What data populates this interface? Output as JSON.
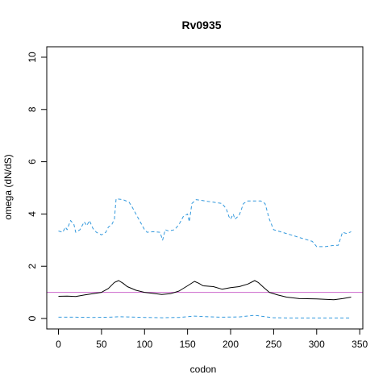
{
  "chart_data": {
    "type": "line",
    "title": "Rv0935",
    "xlabel": "codon",
    "ylabel": "omega (dN/dS)",
    "xlim": [
      -13.6,
      353.6
    ],
    "ylim": [
      -0.4,
      10.4
    ],
    "xticks": [
      0,
      50,
      100,
      150,
      200,
      250,
      300,
      350
    ],
    "yticks": [
      0,
      2,
      4,
      6,
      8,
      10
    ],
    "grid": false,
    "reference_line": {
      "y": 1,
      "color": "#cc66cc"
    },
    "series": [
      {
        "style": "solid",
        "color": "#000000",
        "points": [
          [
            0,
            0.85
          ],
          [
            10,
            0.86
          ],
          [
            20,
            0.84
          ],
          [
            30,
            0.9
          ],
          [
            40,
            0.95
          ],
          [
            50,
            1.0
          ],
          [
            58,
            1.15
          ],
          [
            65,
            1.38
          ],
          [
            70,
            1.45
          ],
          [
            75,
            1.35
          ],
          [
            80,
            1.22
          ],
          [
            90,
            1.08
          ],
          [
            100,
            1.0
          ],
          [
            110,
            0.96
          ],
          [
            120,
            0.92
          ],
          [
            130,
            0.95
          ],
          [
            140,
            1.05
          ],
          [
            150,
            1.25
          ],
          [
            158,
            1.42
          ],
          [
            163,
            1.35
          ],
          [
            168,
            1.25
          ],
          [
            180,
            1.22
          ],
          [
            190,
            1.12
          ],
          [
            200,
            1.18
          ],
          [
            210,
            1.22
          ],
          [
            220,
            1.32
          ],
          [
            228,
            1.45
          ],
          [
            232,
            1.38
          ],
          [
            238,
            1.2
          ],
          [
            245,
            1.0
          ],
          [
            255,
            0.9
          ],
          [
            265,
            0.82
          ],
          [
            280,
            0.76
          ],
          [
            300,
            0.75
          ],
          [
            320,
            0.72
          ],
          [
            330,
            0.76
          ],
          [
            340,
            0.82
          ]
        ]
      },
      {
        "style": "dashed",
        "color": "#3399dd",
        "points": [
          [
            0,
            3.35
          ],
          [
            5,
            3.3
          ],
          [
            8,
            3.5
          ],
          [
            10,
            3.4
          ],
          [
            14,
            3.75
          ],
          [
            18,
            3.6
          ],
          [
            20,
            3.3
          ],
          [
            25,
            3.4
          ],
          [
            30,
            3.7
          ],
          [
            33,
            3.55
          ],
          [
            36,
            3.75
          ],
          [
            40,
            3.45
          ],
          [
            44,
            3.3
          ],
          [
            50,
            3.2
          ],
          [
            55,
            3.3
          ],
          [
            58,
            3.5
          ],
          [
            62,
            3.6
          ],
          [
            65,
            3.8
          ],
          [
            67,
            4.58
          ],
          [
            75,
            4.55
          ],
          [
            82,
            4.45
          ],
          [
            85,
            4.3
          ],
          [
            90,
            4.0
          ],
          [
            95,
            3.7
          ],
          [
            100,
            3.4
          ],
          [
            103,
            3.3
          ],
          [
            110,
            3.32
          ],
          [
            118,
            3.3
          ],
          [
            121,
            3.0
          ],
          [
            124,
            3.4
          ],
          [
            128,
            3.35
          ],
          [
            135,
            3.4
          ],
          [
            140,
            3.6
          ],
          [
            145,
            3.9
          ],
          [
            150,
            4.0
          ],
          [
            152,
            3.7
          ],
          [
            155,
            4.4
          ],
          [
            160,
            4.55
          ],
          [
            170,
            4.5
          ],
          [
            180,
            4.45
          ],
          [
            190,
            4.4
          ],
          [
            195,
            4.2
          ],
          [
            198,
            3.9
          ],
          [
            200,
            3.8
          ],
          [
            203,
            4.0
          ],
          [
            205,
            3.8
          ],
          [
            210,
            3.95
          ],
          [
            215,
            4.4
          ],
          [
            220,
            4.5
          ],
          [
            235,
            4.5
          ],
          [
            240,
            4.4
          ],
          [
            245,
            3.8
          ],
          [
            250,
            3.4
          ],
          [
            260,
            3.3
          ],
          [
            270,
            3.2
          ],
          [
            280,
            3.1
          ],
          [
            290,
            3.0
          ],
          [
            295,
            2.95
          ],
          [
            300,
            2.75
          ],
          [
            310,
            2.75
          ],
          [
            320,
            2.8
          ],
          [
            325,
            2.8
          ],
          [
            330,
            3.3
          ],
          [
            335,
            3.25
          ],
          [
            340,
            3.32
          ]
        ]
      },
      {
        "style": "dashed",
        "color": "#3399dd",
        "points": [
          [
            0,
            0.05
          ],
          [
            20,
            0.05
          ],
          [
            40,
            0.04
          ],
          [
            60,
            0.05
          ],
          [
            70,
            0.07
          ],
          [
            80,
            0.06
          ],
          [
            100,
            0.04
          ],
          [
            120,
            0.03
          ],
          [
            140,
            0.04
          ],
          [
            158,
            0.09
          ],
          [
            170,
            0.07
          ],
          [
            190,
            0.05
          ],
          [
            210,
            0.06
          ],
          [
            228,
            0.12
          ],
          [
            240,
            0.07
          ],
          [
            250,
            0.03
          ],
          [
            270,
            0.02
          ],
          [
            300,
            0.02
          ],
          [
            320,
            0.02
          ],
          [
            340,
            0.02
          ]
        ]
      }
    ]
  }
}
